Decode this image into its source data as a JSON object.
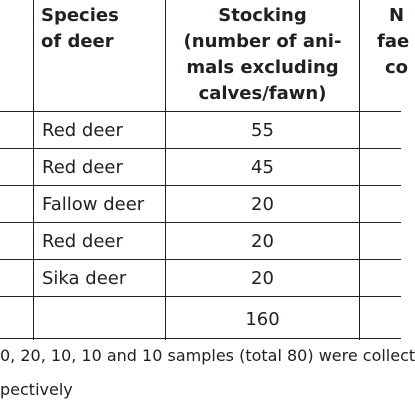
{
  "header": {
    "species_line1": "Species",
    "species_line2": "of deer",
    "stocking_line1": "Stocking",
    "stocking_line2": "(number of ani-",
    "stocking_line3": "mals excluding",
    "stocking_line4": "calves/fawn)",
    "next_line1": "N",
    "next_line2": "fae",
    "next_line3": "co"
  },
  "rows": [
    {
      "species": "Red deer",
      "stocking": "55"
    },
    {
      "species": "Red deer",
      "stocking": "45"
    },
    {
      "species": "Fallow deer",
      "stocking": "20"
    },
    {
      "species": "Red deer",
      "stocking": "20"
    },
    {
      "species": "Sika deer",
      "stocking": "20"
    },
    {
      "species": "",
      "stocking": "160"
    }
  ],
  "footnote": {
    "line1": "0, 20, 10, 10 and 10 samples (total 80) were collect",
    "line2": "pectively"
  }
}
